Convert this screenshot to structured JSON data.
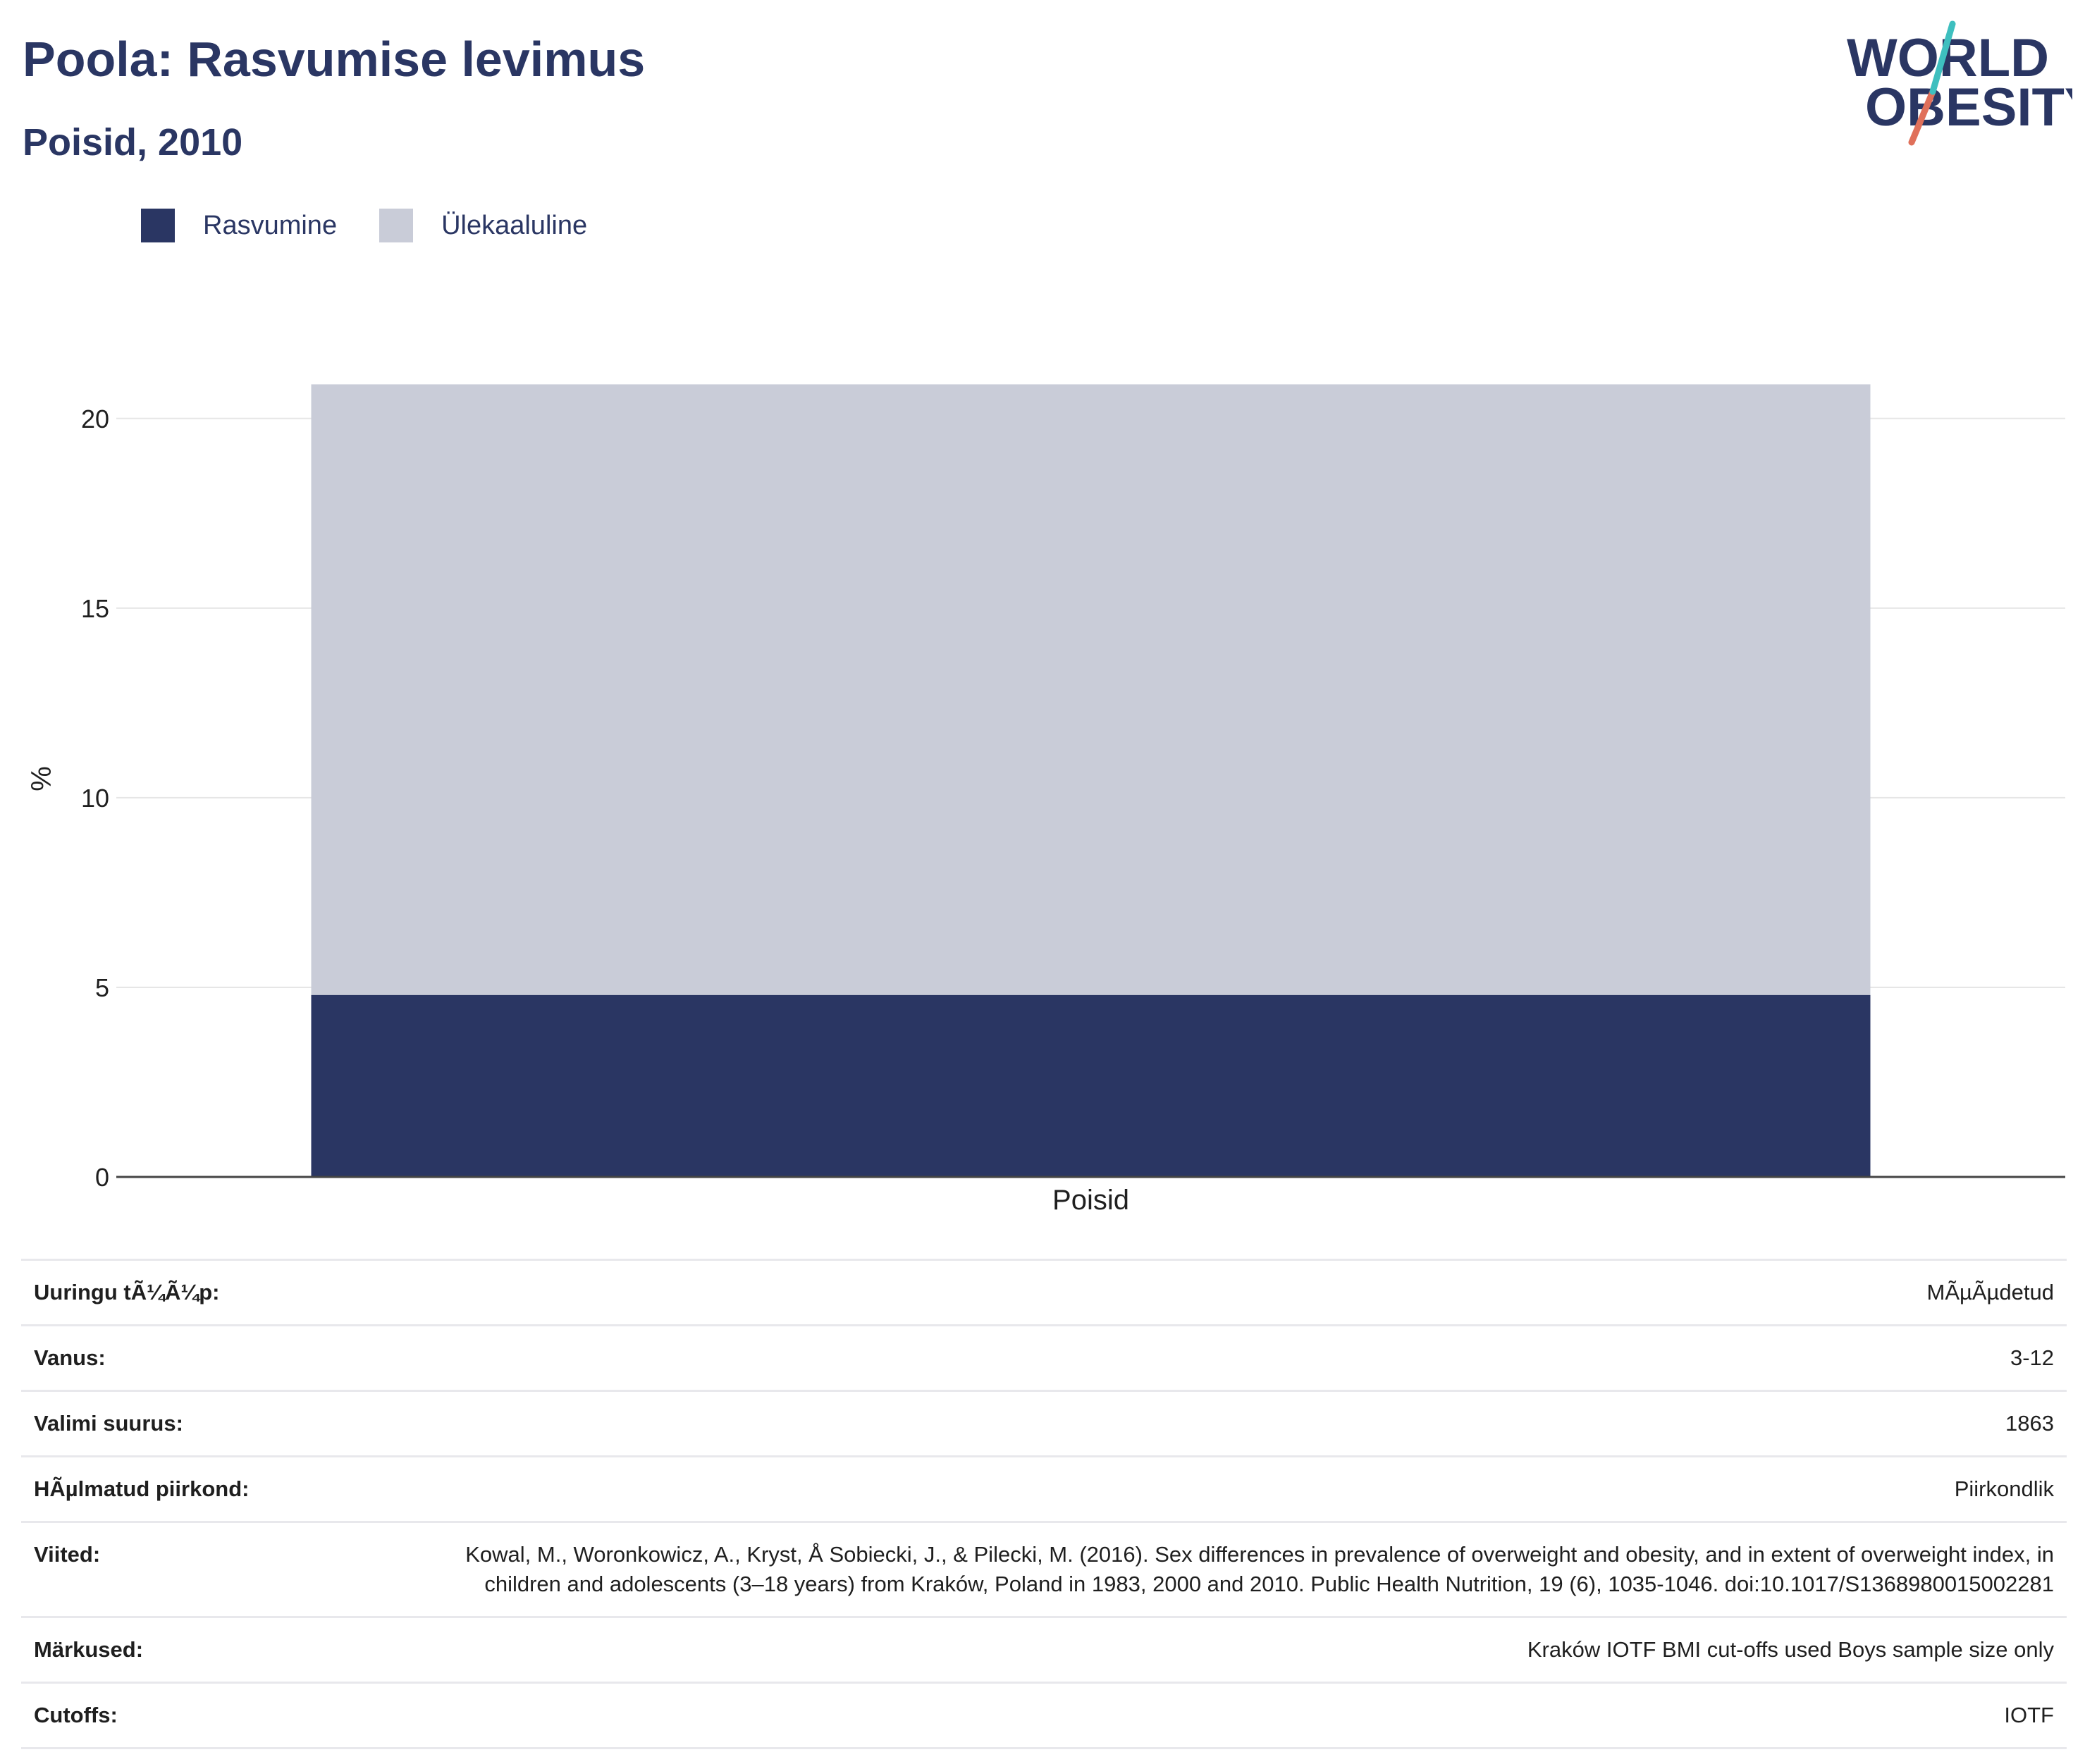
{
  "header": {
    "title": "Poola: Rasvumise levimus",
    "subtitle": "Poisid, 2010"
  },
  "logo": {
    "line1": "WORLD",
    "line2": "OBESITY",
    "colors": {
      "text": "#2a3663",
      "slash_teal": "#3ebfbf",
      "slash_coral": "#e0705a"
    }
  },
  "legend": [
    {
      "label": "Rasvumine",
      "color": "#2a3663"
    },
    {
      "label": "Ülekaaluline",
      "color": "#c9ccd8"
    }
  ],
  "chart_data": {
    "type": "bar",
    "stacked": true,
    "categories": [
      "Poisid"
    ],
    "series": [
      {
        "name": "Rasvumine",
        "values": [
          4.8
        ],
        "color": "#2a3663"
      },
      {
        "name": "Ülekaaluline",
        "values": [
          16.1
        ],
        "color": "#c9ccd8"
      }
    ],
    "ylabel": "%",
    "xlabel": "",
    "ylim": [
      0,
      21
    ],
    "yticks": [
      0,
      5,
      10,
      15,
      20
    ],
    "grid": true,
    "legend_position": "top-left"
  },
  "info": [
    {
      "key": "Uuringu tÃ¼Ã¼p:",
      "value": "MÃµÃµdetud"
    },
    {
      "key": "Vanus:",
      "value": "3-12"
    },
    {
      "key": "Valimi suurus:",
      "value": "1863"
    },
    {
      "key": "HÃµlmatud piirkond:",
      "value": "Piirkondlik"
    },
    {
      "key": "Viited:",
      "value": "Kowal, M., Woronkowicz, A., Kryst, Å Sobiecki, J., & Pilecki, M. (2016). Sex differences in prevalence of overweight and obesity, and in extent of overweight index, in children and adolescents (3–18 years) from Kraków, Poland in 1983, 2000 and 2010. Public Health Nutrition, 19 (6), 1035-1046. doi:10.1017/S1368980015002281"
    },
    {
      "key": "Märkused:",
      "value": "Kraków IOTF BMI cut-offs used Boys sample size only"
    },
    {
      "key": "Cutoffs:",
      "value": "IOTF"
    }
  ]
}
